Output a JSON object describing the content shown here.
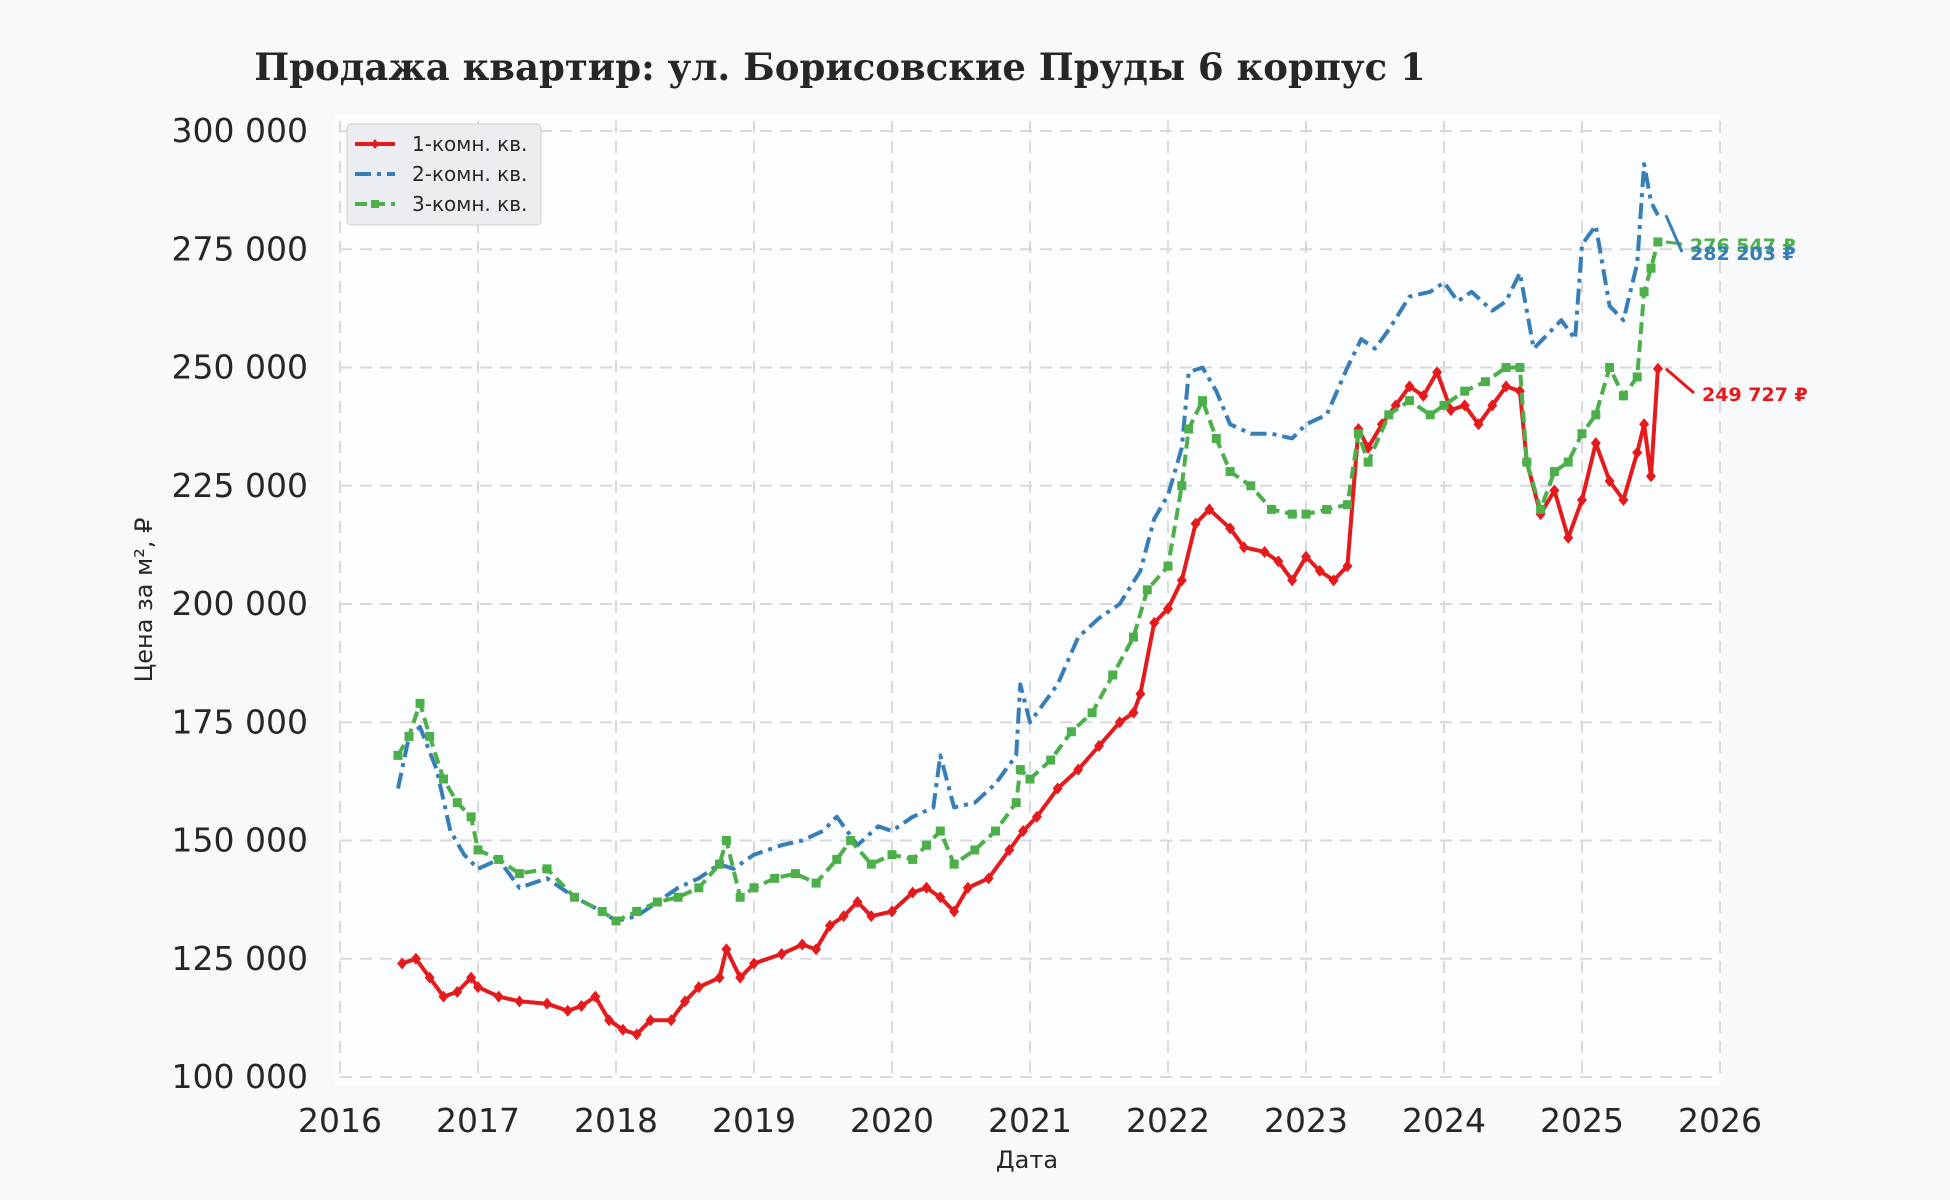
{
  "chart_data": {
    "type": "line",
    "title": "Продажа квартир: ул. Борисовские Пруды 6 корпус 1",
    "xlabel": "Дата",
    "ylabel": "Цена за м², ₽",
    "xlim": [
      2016.0,
      2026.0
    ],
    "ylim": [
      100000,
      300000
    ],
    "x_ticks": [
      "2016",
      "2017",
      "2018",
      "2019",
      "2020",
      "2021",
      "2022",
      "2023",
      "2024",
      "2025",
      "2026"
    ],
    "y_ticks": [
      "100 000",
      "125 000",
      "150 000",
      "175 000",
      "200 000",
      "225 000",
      "250 000",
      "275 000",
      "300 000"
    ],
    "grid": true,
    "legend_position": "top-left",
    "series": [
      {
        "name": "1-комн. кв.",
        "color": "#e41a1c",
        "style": "solid",
        "marker": "diamond",
        "end_label": "249 727 ₽",
        "x": [
          2016.45,
          2016.55,
          2016.65,
          2016.75,
          2016.85,
          2016.95,
          2017.0,
          2017.15,
          2017.3,
          2017.5,
          2017.65,
          2017.75,
          2017.85,
          2017.95,
          2018.05,
          2018.15,
          2018.25,
          2018.4,
          2018.5,
          2018.6,
          2018.75,
          2018.8,
          2018.9,
          2019.0,
          2019.2,
          2019.35,
          2019.45,
          2019.55,
          2019.65,
          2019.75,
          2019.85,
          2020.0,
          2020.15,
          2020.25,
          2020.35,
          2020.45,
          2020.55,
          2020.7,
          2020.85,
          2020.95,
          2021.05,
          2021.2,
          2021.35,
          2021.5,
          2021.65,
          2021.75,
          2021.8,
          2021.9,
          2022.0,
          2022.1,
          2022.2,
          2022.3,
          2022.45,
          2022.55,
          2022.7,
          2022.8,
          2022.9,
          2023.0,
          2023.1,
          2023.2,
          2023.3,
          2023.38,
          2023.45,
          2023.55,
          2023.65,
          2023.75,
          2023.85,
          2023.95,
          2024.05,
          2024.15,
          2024.25,
          2024.35,
          2024.45,
          2024.55,
          2024.6,
          2024.7,
          2024.8,
          2024.9,
          2025.0,
          2025.1,
          2025.2,
          2025.3,
          2025.4,
          2025.45,
          2025.5,
          2025.55
        ],
        "y": [
          124000,
          125000,
          121000,
          117000,
          118000,
          121000,
          119000,
          117000,
          116000,
          115500,
          114000,
          115000,
          117000,
          112000,
          110000,
          109000,
          112000,
          112000,
          116000,
          119000,
          121000,
          127000,
          121000,
          124000,
          126000,
          128000,
          127000,
          132000,
          134000,
          137000,
          134000,
          135000,
          139000,
          140000,
          138000,
          135000,
          140000,
          142000,
          148000,
          152000,
          155000,
          161000,
          165000,
          170000,
          175000,
          177000,
          181000,
          196000,
          199000,
          205000,
          217000,
          220000,
          216000,
          212000,
          211000,
          209000,
          205000,
          210000,
          207000,
          205000,
          208000,
          237000,
          233000,
          238000,
          242000,
          246000,
          244000,
          249000,
          241000,
          242000,
          238000,
          242000,
          246000,
          245000,
          230000,
          219000,
          224000,
          214000,
          222000,
          234000,
          226000,
          222000,
          232000,
          238000,
          227000,
          249727
        ]
      },
      {
        "name": "2-комн. кв.",
        "color": "#377eb8",
        "style": "dashdot",
        "marker": "none",
        "end_label": "282 203 ₽",
        "x": [
          2016.42,
          2016.5,
          2016.58,
          2016.7,
          2016.8,
          2016.9,
          2017.0,
          2017.15,
          2017.3,
          2017.5,
          2017.7,
          2017.9,
          2018.0,
          2018.15,
          2018.3,
          2018.45,
          2018.6,
          2018.75,
          2018.85,
          2019.0,
          2019.2,
          2019.35,
          2019.5,
          2019.6,
          2019.75,
          2019.9,
          2020.0,
          2020.15,
          2020.3,
          2020.35,
          2020.45,
          2020.6,
          2020.75,
          2020.9,
          2020.93,
          2021.0,
          2021.2,
          2021.35,
          2021.5,
          2021.65,
          2021.8,
          2021.9,
          2022.0,
          2022.1,
          2022.15,
          2022.25,
          2022.35,
          2022.45,
          2022.6,
          2022.75,
          2022.9,
          2023.0,
          2023.15,
          2023.3,
          2023.4,
          2023.5,
          2023.6,
          2023.75,
          2023.9,
          2024.0,
          2024.1,
          2024.2,
          2024.35,
          2024.45,
          2024.55,
          2024.65,
          2024.75,
          2024.85,
          2024.95,
          2025.0,
          2025.1,
          2025.2,
          2025.3,
          2025.4,
          2025.45,
          2025.5,
          2025.55
        ],
        "y": [
          161000,
          172000,
          174000,
          165000,
          152000,
          147000,
          144000,
          146000,
          140000,
          142000,
          138000,
          135000,
          133000,
          134000,
          137000,
          140000,
          142000,
          145000,
          144000,
          147000,
          149000,
          150000,
          152000,
          155000,
          149000,
          153000,
          152000,
          155000,
          157000,
          168000,
          157000,
          158000,
          162000,
          168000,
          183000,
          175000,
          183000,
          193000,
          197000,
          200000,
          207000,
          218000,
          223000,
          233000,
          249000,
          250000,
          245000,
          238000,
          236000,
          236000,
          235000,
          238000,
          240000,
          250000,
          256000,
          254000,
          258000,
          265000,
          266000,
          268000,
          264000,
          266000,
          262000,
          264000,
          270000,
          254000,
          257000,
          260000,
          256000,
          276000,
          280000,
          263000,
          260000,
          272000,
          293000,
          285000,
          282203
        ]
      },
      {
        "name": "3-комн. кв.",
        "color": "#4daf4a",
        "style": "dashed",
        "marker": "square",
        "end_label": "276 547 ₽",
        "x": [
          2016.42,
          2016.5,
          2016.58,
          2016.65,
          2016.75,
          2016.85,
          2016.95,
          2017.0,
          2017.15,
          2017.3,
          2017.5,
          2017.7,
          2017.9,
          2018.0,
          2018.15,
          2018.3,
          2018.45,
          2018.6,
          2018.75,
          2018.8,
          2018.9,
          2019.0,
          2019.15,
          2019.3,
          2019.45,
          2019.6,
          2019.7,
          2019.85,
          2020.0,
          2020.15,
          2020.25,
          2020.35,
          2020.45,
          2020.6,
          2020.75,
          2020.9,
          2020.93,
          2021.0,
          2021.15,
          2021.3,
          2021.45,
          2021.6,
          2021.75,
          2021.85,
          2022.0,
          2022.1,
          2022.15,
          2022.25,
          2022.35,
          2022.45,
          2022.6,
          2022.75,
          2022.9,
          2023.0,
          2023.15,
          2023.3,
          2023.38,
          2023.45,
          2023.6,
          2023.75,
          2023.9,
          2024.0,
          2024.15,
          2024.3,
          2024.45,
          2024.55,
          2024.6,
          2024.7,
          2024.8,
          2024.9,
          2025.0,
          2025.1,
          2025.2,
          2025.3,
          2025.4,
          2025.45,
          2025.5,
          2025.55
        ],
        "y": [
          168000,
          172000,
          179000,
          172000,
          163000,
          158000,
          155000,
          148000,
          146000,
          143000,
          144000,
          138000,
          135000,
          133000,
          135000,
          137000,
          138000,
          140000,
          145000,
          150000,
          138000,
          140000,
          142000,
          143000,
          141000,
          146000,
          150000,
          145000,
          147000,
          146000,
          149000,
          152000,
          145000,
          148000,
          152000,
          158000,
          165000,
          163000,
          167000,
          173000,
          177000,
          185000,
          193000,
          203000,
          208000,
          225000,
          237000,
          243000,
          235000,
          228000,
          225000,
          220000,
          219000,
          219000,
          220000,
          221000,
          236000,
          230000,
          240000,
          243000,
          240000,
          242000,
          245000,
          247000,
          250000,
          250000,
          230000,
          220000,
          228000,
          230000,
          236000,
          240000,
          250000,
          244000,
          248000,
          266000,
          271000,
          276547
        ]
      }
    ]
  }
}
